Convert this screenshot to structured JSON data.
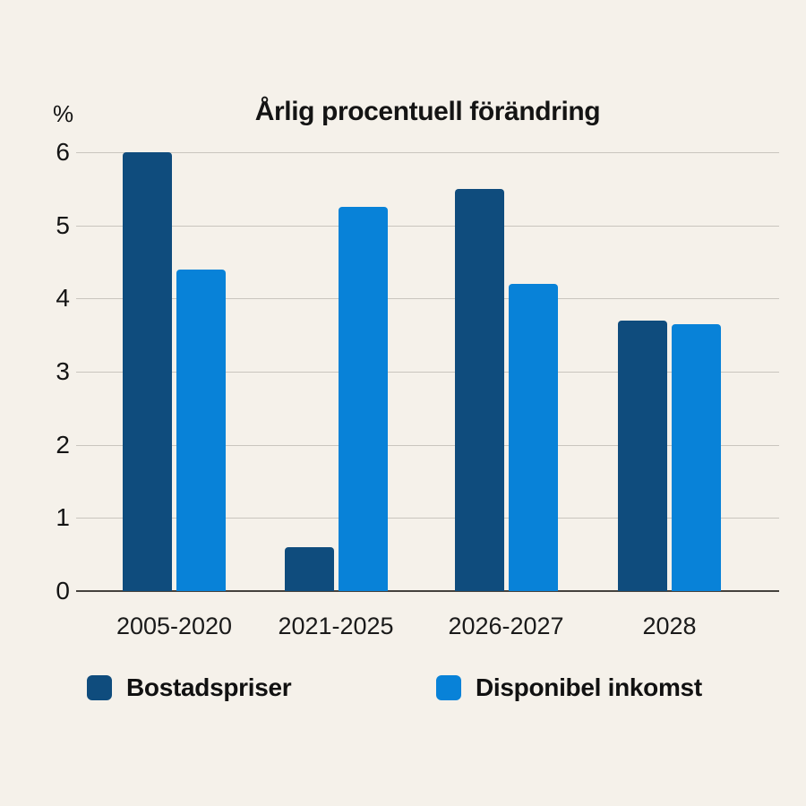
{
  "chart_data": {
    "type": "bar",
    "title": "Årlig procentuell förändring",
    "unit_label": "%",
    "categories": [
      "2005-2020",
      "2021-2025",
      "2026-2027",
      "2028"
    ],
    "series": [
      {
        "name": "Bostadspriser",
        "color": "#0F4C7D",
        "values": [
          6.0,
          0.6,
          5.5,
          3.7
        ]
      },
      {
        "name": "Disponibel inkomst",
        "color": "#0882D8",
        "values": [
          4.4,
          5.25,
          4.2,
          3.65
        ]
      }
    ],
    "ylim": [
      0,
      6
    ],
    "yticks": [
      0,
      1,
      2,
      3,
      4,
      5,
      6
    ],
    "grid": true,
    "legend_position": "bottom"
  },
  "colors": {
    "background": "#F5F1EA",
    "gridline": "#C9C5BE",
    "axis_line": "#45423D",
    "text": "#141414"
  }
}
